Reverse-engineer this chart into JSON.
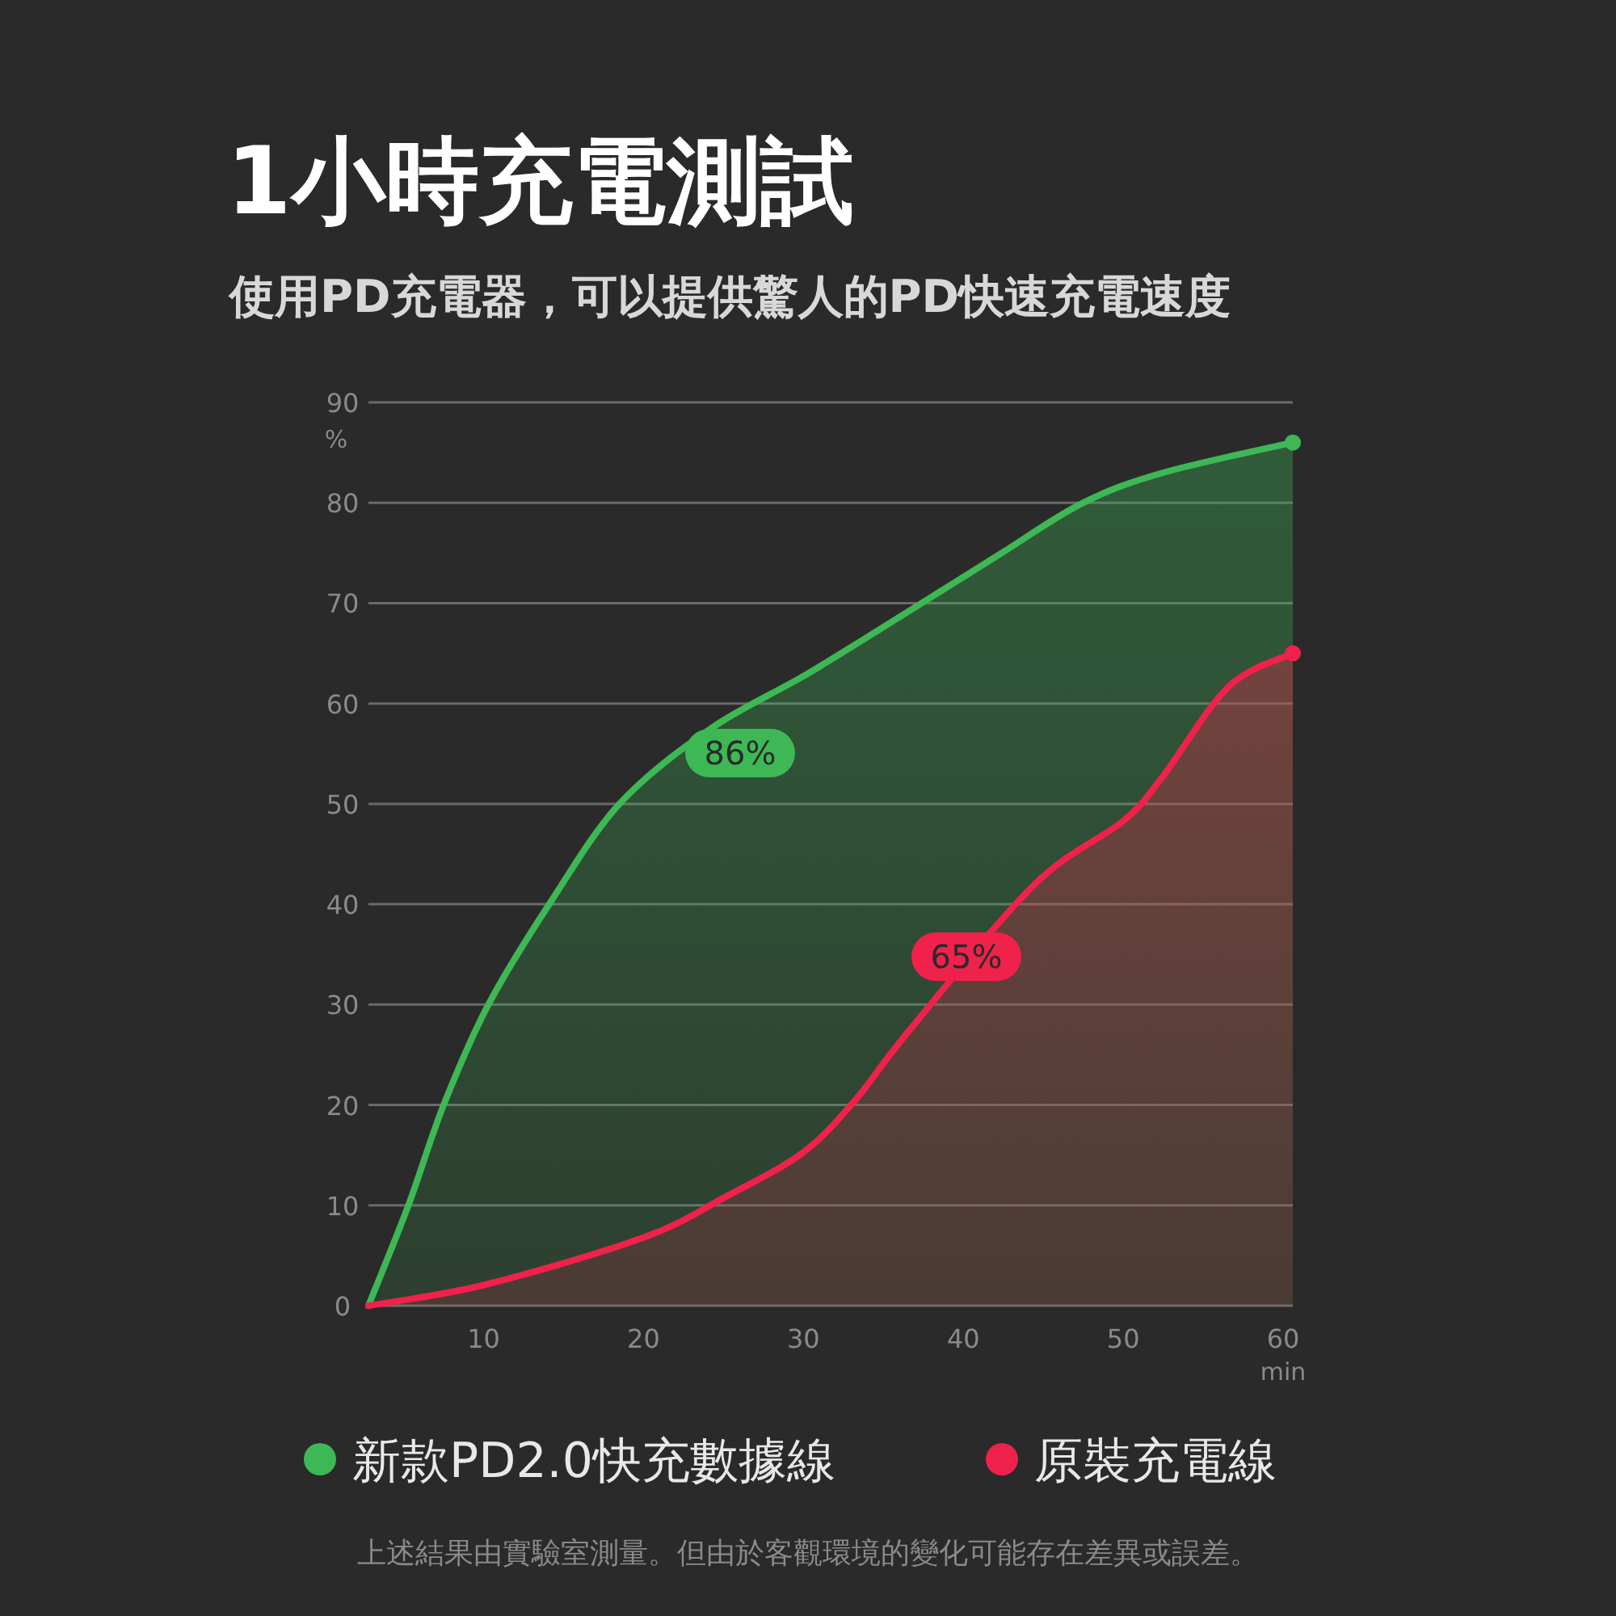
{
  "chart_data": {
    "type": "area",
    "title": "1小時充電測試",
    "subtitle": "使用PD充電器，可以提供驚人的PD快速充電速度",
    "xlabel": "min",
    "ylabel": "%",
    "xlim": [
      2.8,
      60.6
    ],
    "xticks": [
      10,
      20,
      30,
      40,
      50,
      60
    ],
    "ylim": [
      0,
      90
    ],
    "yticks": [
      0,
      10,
      20,
      30,
      40,
      50,
      60,
      70,
      80,
      90
    ],
    "grid": "y",
    "legend": "bottom",
    "series": [
      {
        "name": "新款PD2.0快充數據線",
        "color": "#3db854",
        "x": [
          2.8,
          5.3,
          7.5,
          10.3,
          14.1,
          18.5,
          24.2,
          30.3,
          37.4,
          42.4,
          47.5,
          52.5,
          60.6
        ],
        "values": [
          0,
          10,
          20,
          30,
          40,
          50,
          57.5,
          63,
          70,
          75,
          80,
          83,
          86
        ]
      },
      {
        "name": "原裝充電線",
        "color": "#f0214a",
        "x": [
          2.8,
          10.1,
          20,
          25.3,
          30,
          33.3,
          36.4,
          44.4,
          50,
          52.5,
          56.6,
          60.6
        ],
        "values": [
          0,
          2.1,
          6.8,
          11,
          15.3,
          20.6,
          27,
          41.9,
          48.3,
          52.8,
          61.7,
          65
        ]
      }
    ],
    "annotations": [
      "86%",
      "65%",
      "上述結果由實驗室測量。但由於客觀環境的變化可能存在差異或誤差。"
    ]
  }
}
